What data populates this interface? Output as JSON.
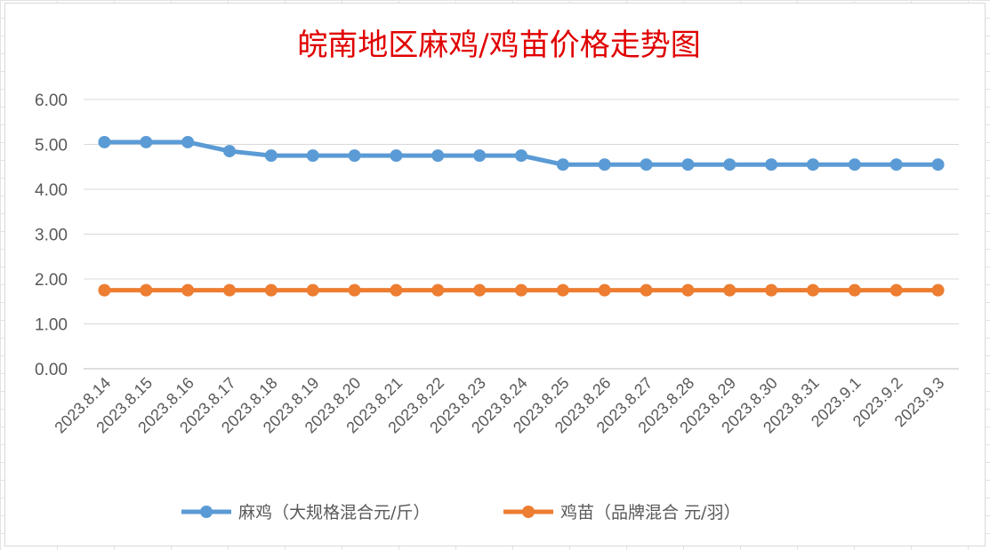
{
  "chart_data": {
    "type": "line",
    "title": "皖南地区麻鸡/鸡苗价格走势图",
    "categories": [
      "2023.8.14",
      "2023.8.15",
      "2023.8.16",
      "2023.8.17",
      "2023.8.18",
      "2023.8.19",
      "2023.8.20",
      "2023.8.21",
      "2023.8.22",
      "2023.8.23",
      "2023.8.24",
      "2023.8.25",
      "2023.8.26",
      "2023.8.27",
      "2023.8.28",
      "2023.8.29",
      "2023.8.30",
      "2023.8.31",
      "2023.9.1",
      "2023.9.2",
      "2023.9.3"
    ],
    "series": [
      {
        "name": "麻鸡（大规格混合元/斤）",
        "color": "#5b9bd5",
        "values": [
          5.05,
          5.05,
          5.05,
          4.85,
          4.75,
          4.75,
          4.75,
          4.75,
          4.75,
          4.75,
          4.75,
          4.55,
          4.55,
          4.55,
          4.55,
          4.55,
          4.55,
          4.55,
          4.55,
          4.55,
          4.55
        ]
      },
      {
        "name": "鸡苗（品牌混合 元/羽）",
        "color": "#ed7d31",
        "values": [
          1.75,
          1.75,
          1.75,
          1.75,
          1.75,
          1.75,
          1.75,
          1.75,
          1.75,
          1.75,
          1.75,
          1.75,
          1.75,
          1.75,
          1.75,
          1.75,
          1.75,
          1.75,
          1.75,
          1.75,
          1.75
        ]
      }
    ],
    "ylim": [
      0,
      6
    ],
    "yticks": [
      "0.00",
      "1.00",
      "2.00",
      "3.00",
      "4.00",
      "5.00",
      "6.00"
    ],
    "grid": true,
    "legend": "bottom",
    "xlabel": "",
    "ylabel": ""
  }
}
